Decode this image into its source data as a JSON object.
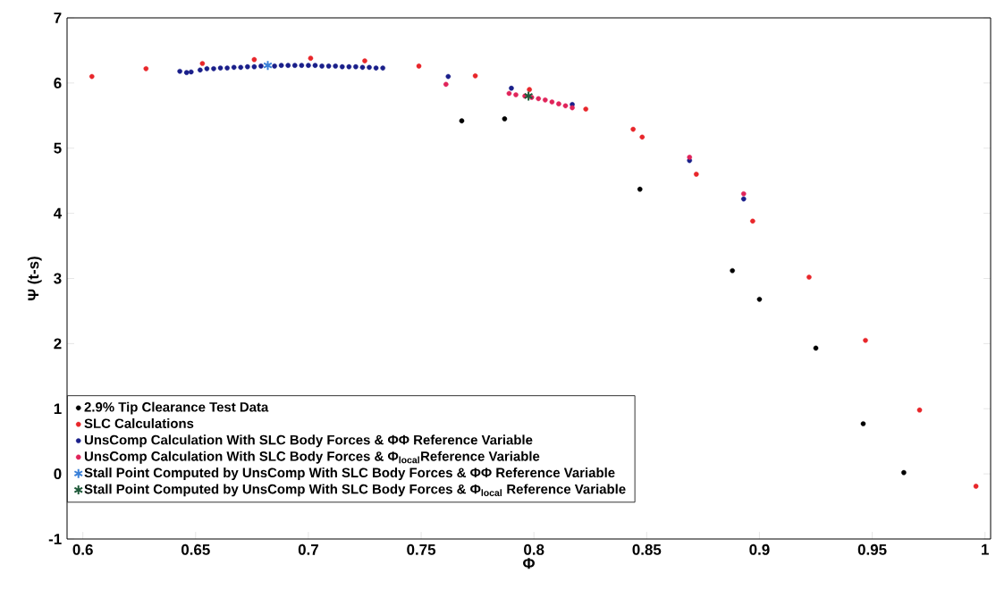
{
  "chart_data": {
    "type": "scatter",
    "xlabel": "Φ",
    "ylabel": "Ψ (t-s)",
    "xlim": [
      0.593,
      1.0025
    ],
    "ylim": [
      -1,
      7
    ],
    "xticks": [
      0.6,
      0.65,
      0.7,
      0.75,
      0.8,
      0.85,
      0.9,
      0.95,
      1
    ],
    "yticks": [
      -1,
      0,
      1,
      2,
      3,
      4,
      5,
      6,
      7
    ],
    "legend": "bottom left",
    "grid": false,
    "series": [
      {
        "name": "2.9% Tip Clearance Test Data",
        "color": "#000000",
        "marker": "circle",
        "x": [
          0.768,
          0.787,
          0.847,
          0.888,
          0.9,
          0.925,
          0.946,
          0.964
        ],
        "values": [
          5.42,
          5.45,
          4.37,
          3.12,
          2.68,
          1.93,
          0.77,
          0.02
        ]
      },
      {
        "name": "SLC Calculations",
        "color": "#e8262a",
        "marker": "circle",
        "x": [
          0.604,
          0.628,
          0.653,
          0.676,
          0.701,
          0.725,
          0.749,
          0.774,
          0.798,
          0.823,
          0.844,
          0.848,
          0.872,
          0.897,
          0.922,
          0.947,
          0.971,
          0.996
        ],
        "values": [
          6.1,
          6.22,
          6.3,
          6.36,
          6.38,
          6.34,
          6.26,
          6.11,
          5.9,
          5.6,
          5.29,
          5.17,
          4.6,
          3.88,
          3.02,
          2.05,
          0.98,
          -0.19
        ]
      },
      {
        "name": "UnsComp Calculation With SLC Body Forces & ΦΦ Reference Variable",
        "color": "#1a1f8a",
        "marker": "circle",
        "x": [
          0.643,
          0.646,
          0.648,
          0.652,
          0.655,
          0.658,
          0.661,
          0.664,
          0.667,
          0.67,
          0.673,
          0.676,
          0.679,
          0.682,
          0.685,
          0.688,
          0.691,
          0.694,
          0.697,
          0.7,
          0.703,
          0.706,
          0.709,
          0.712,
          0.715,
          0.718,
          0.721,
          0.724,
          0.727,
          0.73,
          0.733,
          0.762,
          0.79,
          0.817,
          0.869,
          0.893
        ],
        "values": [
          6.18,
          6.16,
          6.17,
          6.2,
          6.22,
          6.22,
          6.23,
          6.23,
          6.24,
          6.24,
          6.25,
          6.25,
          6.26,
          null,
          6.26,
          6.27,
          6.27,
          6.27,
          6.27,
          6.27,
          6.27,
          6.26,
          6.26,
          6.26,
          6.25,
          6.25,
          6.25,
          6.24,
          6.24,
          6.23,
          6.23,
          6.1,
          5.92,
          5.67,
          4.81,
          4.22
        ]
      },
      {
        "name": "UnsComp Calculation With SLC Body Forces & Φ$_{local}$Reference Variable",
        "color": "#e0245a",
        "marker": "circle",
        "x": [
          0.761,
          0.789,
          0.792,
          0.796,
          0.799,
          0.802,
          0.805,
          0.808,
          0.811,
          0.814,
          0.817,
          0.869,
          0.893
        ],
        "values": [
          5.98,
          5.84,
          5.82,
          5.8,
          5.78,
          5.76,
          5.74,
          5.71,
          5.68,
          5.65,
          5.62,
          4.86,
          4.3
        ]
      },
      {
        "name": "Stall Point Computed by UnsComp With SLC Body Forces & ΦΦ Reference Variable",
        "color": "#3a80d8",
        "marker": "cross",
        "x": [
          0.682
        ],
        "values": [
          6.27
        ]
      },
      {
        "name": "Stall Point Computed by UnsComp With SLC Body Forces & Φ$_{local}$ Reference Variable",
        "color": "#1f5a3a",
        "marker": "cross",
        "x": [
          0.7976
        ],
        "values": [
          5.8
        ]
      }
    ]
  }
}
